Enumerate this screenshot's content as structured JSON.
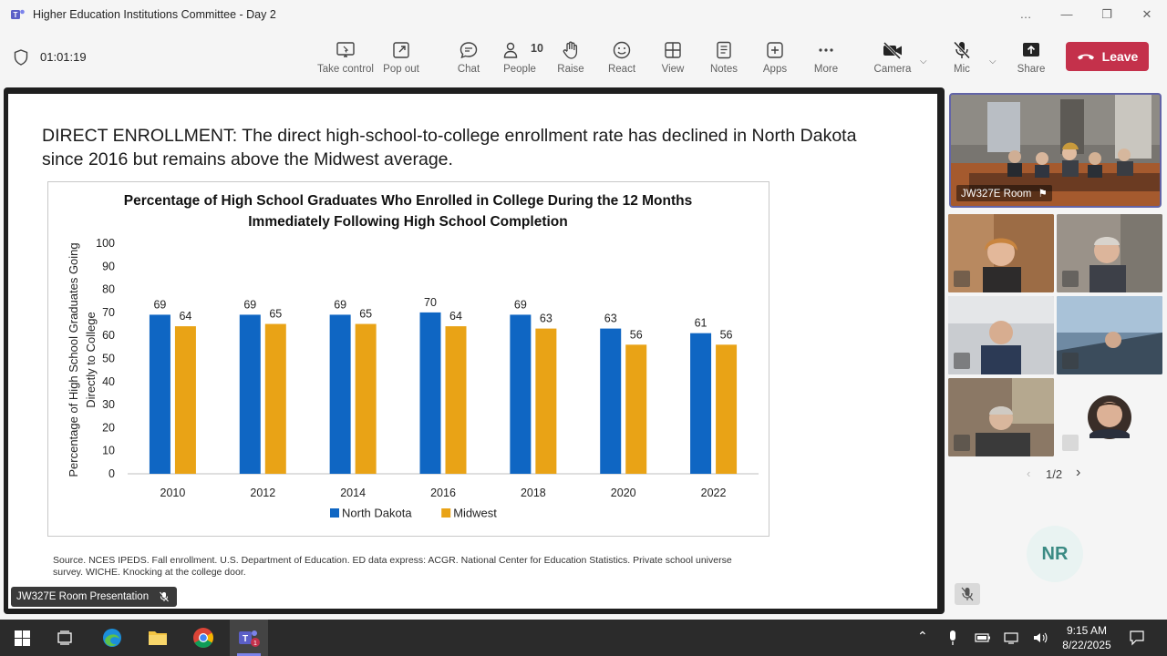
{
  "window": {
    "title": "Higher Education Institutions Committee - Day 2",
    "controls": [
      "…",
      "—",
      "❐",
      "✕"
    ]
  },
  "toolbar": {
    "timer": "01:01:19",
    "buttons": [
      {
        "label": "Take control",
        "icon": "take-control-icon"
      },
      {
        "label": "Pop out",
        "icon": "pop-out-icon"
      },
      {
        "label": "Chat",
        "icon": "chat-icon"
      },
      {
        "label": "People",
        "icon": "people-icon",
        "count": "10"
      },
      {
        "label": "Raise",
        "icon": "raise-hand-icon"
      },
      {
        "label": "React",
        "icon": "react-icon"
      },
      {
        "label": "View",
        "icon": "view-icon"
      },
      {
        "label": "Notes",
        "icon": "notes-icon"
      },
      {
        "label": "Apps",
        "icon": "apps-icon"
      },
      {
        "label": "More",
        "icon": "more-icon"
      },
      {
        "label": "Camera",
        "icon": "camera-off-icon"
      },
      {
        "label": "Mic",
        "icon": "mic-off-icon"
      },
      {
        "label": "Share",
        "icon": "share-icon"
      }
    ],
    "leave_label": "Leave",
    "leave_color": "#c4314b"
  },
  "slide": {
    "heading": "DIRECT ENROLLMENT: The direct high-school-to-college enrollment rate has declined in North Dakota since 2016 but remains above the Midwest average.",
    "source": "Source. NCES IPEDS. Fall enrollment. U.S. Department of Education. ED data express: ACGR. National Center for Education Statistics. Private school universe survey. WICHE. Knocking at the college door.",
    "presenter_label": "JW327E Room Presentation"
  },
  "chart_data": {
    "type": "bar",
    "title": "Percentage of High School Graduates Who Enrolled in College During the 12 Months Immediately Following High School Completion",
    "ylabel_lines": [
      "Percentage of High School Graduates Going",
      "Directly to College"
    ],
    "xlabel": "",
    "categories": [
      "2010",
      "2012",
      "2014",
      "2016",
      "2018",
      "2020",
      "2022"
    ],
    "ylim": [
      0,
      100
    ],
    "yticks": [
      0,
      10,
      20,
      30,
      40,
      50,
      60,
      70,
      80,
      90,
      100
    ],
    "series": [
      {
        "name": "North Dakota",
        "color": "#0f66c3",
        "values": [
          69,
          69,
          69,
          70,
          69,
          63,
          61
        ]
      },
      {
        "name": "Midwest",
        "color": "#e9a316",
        "values": [
          64,
          65,
          65,
          64,
          63,
          56,
          56
        ]
      }
    ],
    "legend": "bottom",
    "grid": false
  },
  "sidebar": {
    "room_label": "JW327E Room",
    "pager": "1/2",
    "nr_initials": "NR",
    "participant_tiles": 6
  },
  "taskbar": {
    "time": "9:15 AM",
    "date": "8/22/2025",
    "apps": [
      "windows-start-icon",
      "task-view-icon",
      "edge-icon",
      "file-explorer-icon",
      "chrome-icon",
      "teams-icon"
    ]
  }
}
